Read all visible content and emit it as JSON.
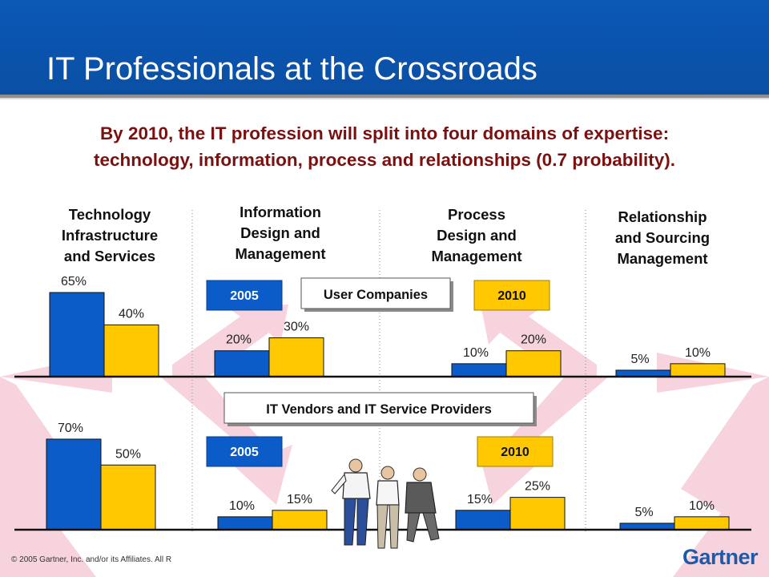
{
  "slide": {
    "title": "IT Professionals at the Crossroads",
    "subtitle_lines": [
      "By 2010, the IT profession will split into four domains of expertise:",
      "technology, information, process and relationships (0.7 probability)."
    ],
    "footer": "© 2005 Gartner, Inc. and/or its Affiliates. All R",
    "logo": "Gartner"
  },
  "colors": {
    "header": "#0b58b6",
    "title_text": "#ffffff",
    "subtitle_text": "#7a1010",
    "bar_2005": "#0b5cc8",
    "bar_2010": "#ffc800",
    "arrows": "#f7d3dd",
    "baseline": "#111111"
  },
  "legend": {
    "year_2005": "2005",
    "year_2010": "2010",
    "user_companies": "User Companies",
    "vendors": "IT Vendors and IT Service Providers"
  },
  "chart_data": {
    "type": "bar",
    "categories": [
      [
        "Technology",
        "Infrastructure",
        "and Services"
      ],
      [
        "Information",
        "Design and",
        "Management"
      ],
      [
        "Process",
        "Design and",
        "Management"
      ],
      [
        "Relationship",
        "and Sourcing",
        "Management"
      ]
    ],
    "panels": [
      {
        "name": "User Companies",
        "series": [
          {
            "name": "2005",
            "values": [
              65,
              20,
              10,
              5
            ],
            "labels": [
              "65%",
              "20%",
              "10%",
              "5%"
            ]
          },
          {
            "name": "2010",
            "values": [
              40,
              30,
              20,
              10
            ],
            "labels": [
              "40%",
              "30%",
              "20%",
              "10%"
            ]
          }
        ]
      },
      {
        "name": "IT Vendors and IT Service Providers",
        "series": [
          {
            "name": "2005",
            "values": [
              70,
              10,
              15,
              5
            ],
            "labels": [
              "70%",
              "10%",
              "15%",
              "5%"
            ]
          },
          {
            "name": "2010",
            "values": [
              50,
              15,
              25,
              10
            ],
            "labels": [
              "50%",
              "15%",
              "25%",
              "10%"
            ]
          }
        ]
      }
    ],
    "unit": "%"
  }
}
